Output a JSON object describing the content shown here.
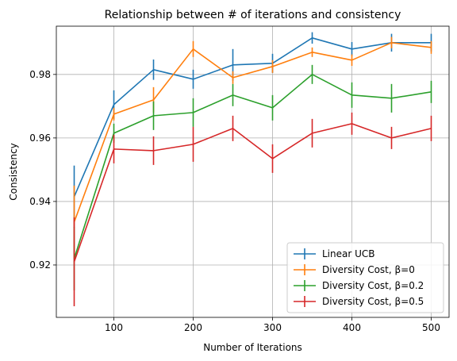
{
  "chart_data": {
    "type": "line",
    "title": "Relationship between # of iterations and consistency",
    "xlabel": "Number of Iterations",
    "ylabel": "Consistency",
    "xlim": [
      27.5,
      522.5
    ],
    "ylim": [
      0.9035,
      0.9952
    ],
    "xticks": [
      100,
      200,
      300,
      400,
      500
    ],
    "yticks": [
      0.92,
      0.94,
      0.96,
      0.98
    ],
    "ytick_labels": [
      "0.92",
      "0.94",
      "0.96",
      "0.98"
    ],
    "grid": true,
    "legend_position": "lower right",
    "x": [
      50,
      100,
      150,
      200,
      250,
      300,
      350,
      400,
      450,
      500
    ],
    "series": [
      {
        "name": "Linear UCB",
        "color": "#1f77b4",
        "values": [
          0.9415,
          0.9705,
          0.9815,
          0.9785,
          0.983,
          0.9835,
          0.9915,
          0.988,
          0.99,
          0.99
        ],
        "errors": [
          0.0098,
          0.0045,
          0.0032,
          0.003,
          0.005,
          0.003,
          0.0018,
          0.0022,
          0.0028,
          0.0028
        ]
      },
      {
        "name": "Diversity Cost, β=0",
        "color": "#ff7f0e",
        "values": [
          0.9335,
          0.9675,
          0.972,
          0.988,
          0.979,
          0.9825,
          0.987,
          0.9845,
          0.99,
          0.9885
        ],
        "errors": [
          0.0115,
          0.002,
          0.004,
          0.0025,
          0.002,
          0.002,
          0.0015,
          0.0018,
          0.0018,
          0.002
        ]
      },
      {
        "name": "Diversity Cost, β=0.2",
        "color": "#2ca02c",
        "values": [
          0.922,
          0.9615,
          0.967,
          0.968,
          0.9735,
          0.9695,
          0.98,
          0.9735,
          0.9725,
          0.9745
        ],
        "errors": [
          0.01,
          0.003,
          0.0045,
          0.0045,
          0.0035,
          0.004,
          0.003,
          0.004,
          0.0045,
          0.0035
        ]
      },
      {
        "name": "Diversity Cost, β=0.5",
        "color": "#d62728",
        "values": [
          0.921,
          0.9565,
          0.956,
          0.958,
          0.963,
          0.9535,
          0.9615,
          0.9645,
          0.96,
          0.963
        ],
        "errors": [
          0.014,
          0.0045,
          0.0045,
          0.0055,
          0.004,
          0.0045,
          0.0045,
          0.0035,
          0.0035,
          0.004
        ]
      }
    ]
  }
}
